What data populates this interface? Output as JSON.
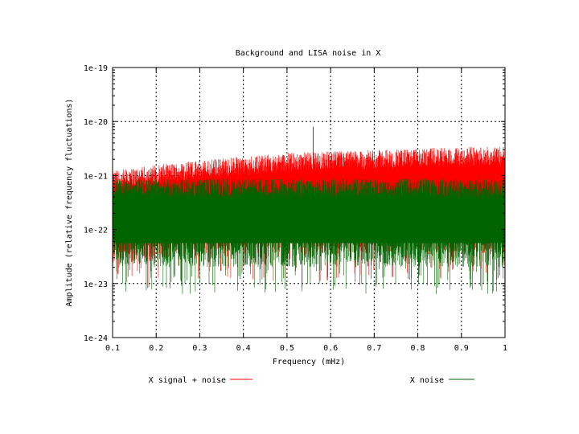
{
  "chart_data": {
    "type": "line",
    "title": "Background and LISA noise in X",
    "xlabel": "Frequency (mHz)",
    "ylabel": "Amplitude (relative frequency fluctuations)",
    "xlim": [
      0.1,
      1
    ],
    "ylim": [
      1e-24,
      1e-19
    ],
    "yscale": "log",
    "grid": true,
    "x_ticks": [
      0.1,
      0.2,
      0.3,
      0.4,
      0.5,
      0.6,
      0.7,
      0.8,
      0.9,
      1
    ],
    "x_tick_labels": [
      "0.1",
      "0.2",
      "0.3",
      "0.4",
      "0.5",
      "0.6",
      "0.7",
      "0.8",
      "0.9",
      "1"
    ],
    "y_ticks": [
      1e-24,
      1e-23,
      1e-22,
      1e-21,
      1e-20,
      1e-19
    ],
    "y_tick_labels": [
      "1e-24",
      "1e-23",
      "1e-22",
      "1e-21",
      "1e-20",
      "1e-19"
    ],
    "legend_position": "bottom",
    "series": [
      {
        "name": "X signal + noise",
        "color": "#ff0000",
        "envelope_x": [
          0.1,
          0.2,
          0.3,
          0.4,
          0.5,
          0.6,
          0.7,
          0.8,
          0.9,
          1
        ],
        "upper": [
          7e-22,
          9e-22,
          1.1e-21,
          1.3e-21,
          1.5e-21,
          1.6e-21,
          1.7e-21,
          1.8e-21,
          1.9e-21,
          2e-21
        ],
        "lower": [
          2e-23,
          2.5e-23,
          3e-23,
          3.5e-23,
          3.5e-23,
          3.5e-23,
          3.5e-23,
          3.5e-23,
          3.5e-23,
          3.5e-23
        ],
        "peak": [
          0.56,
          8e-21
        ]
      },
      {
        "name": "X noise",
        "color": "#006400",
        "envelope_x": [
          0.1,
          0.2,
          0.3,
          0.4,
          0.5,
          0.6,
          0.7,
          0.8,
          0.9,
          1
        ],
        "upper": [
          5e-22,
          5e-22,
          5e-22,
          5e-22,
          5e-22,
          5e-22,
          5e-22,
          5e-22,
          5e-22,
          5e-22
        ],
        "lower": [
          2e-23,
          2e-23,
          2e-23,
          2e-23,
          2e-23,
          2e-23,
          2e-23,
          2e-23,
          2e-23,
          2e-23
        ]
      }
    ]
  }
}
